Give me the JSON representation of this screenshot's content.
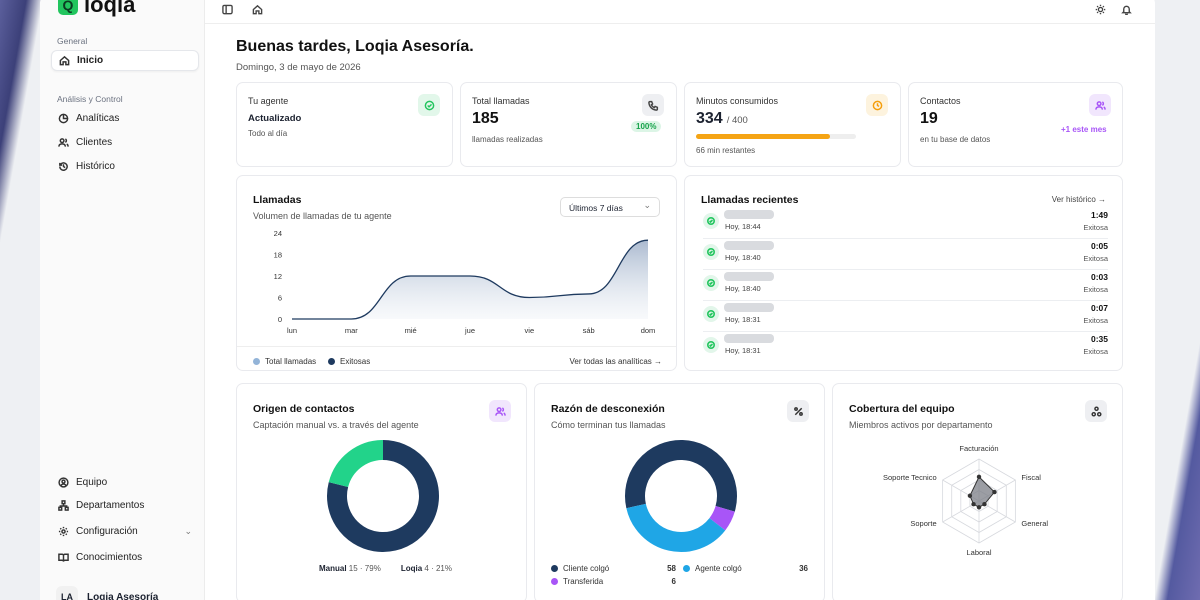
{
  "app": {
    "logo_text": "loqia"
  },
  "sidebar": {
    "section_general": "General",
    "section_analisis": "Análisis y Control",
    "items": [
      {
        "label": "Inicio",
        "icon": "home-icon"
      },
      {
        "label": "Analíticas",
        "icon": "pie-icon"
      },
      {
        "label": "Clientes",
        "icon": "users-icon"
      },
      {
        "label": "Histórico",
        "icon": "history-icon"
      }
    ],
    "bottom_items": [
      {
        "label": "Equipo",
        "icon": "user-circle-icon"
      },
      {
        "label": "Departamentos",
        "icon": "network-icon"
      },
      {
        "label": "Configuración",
        "icon": "gear-icon"
      },
      {
        "label": "Conocimientos",
        "icon": "book-icon"
      }
    ],
    "user": {
      "initials": "LA",
      "name": "Loqia Asesoría"
    }
  },
  "header": {
    "greeting": "Buenas tardes, Loqia Asesoría.",
    "date": "Domingo, 3 de mayo de 2026"
  },
  "stats": {
    "agent": {
      "label": "Tu agente",
      "value": "Actualizado",
      "sub": "Todo al día"
    },
    "calls": {
      "label": "Total llamadas",
      "value": "185",
      "sub": "llamadas realizadas",
      "badge": "100%"
    },
    "minutes": {
      "label": "Minutos consumidos",
      "value": "334",
      "total": "/ 400",
      "sub": "66 min restantes",
      "progress": 0.835
    },
    "contacts": {
      "label": "Contactos",
      "value": "19",
      "sub": "en tu base de datos",
      "badge": "+1 este mes"
    }
  },
  "calls_chart": {
    "title": "Llamadas",
    "subtitle": "Volumen de llamadas de tu agente",
    "range_select": "Últimos 7 días",
    "legend": [
      "Total llamadas",
      "Exitosas"
    ],
    "link": "Ver todas las analíticas →"
  },
  "chart_data": {
    "type": "area",
    "categories": [
      "lun",
      "mar",
      "mié",
      "jue",
      "vie",
      "sáb",
      "dom"
    ],
    "yticks": [
      "24",
      "18",
      "12",
      "6",
      "0"
    ],
    "ylim": [
      0,
      24
    ],
    "series": [
      {
        "name": "Total llamadas",
        "values": [
          0,
          0,
          12,
          12,
          6,
          7,
          22
        ]
      },
      {
        "name": "Exitosas",
        "values": [
          0,
          0,
          12,
          12,
          6,
          7,
          22
        ]
      }
    ]
  },
  "recent": {
    "title": "Llamadas recientes",
    "link": "Ver histórico →",
    "rows": [
      {
        "time": "Hoy, 18:44",
        "duration": "1:49",
        "status": "Exitosa"
      },
      {
        "time": "Hoy, 18:40",
        "duration": "0:05",
        "status": "Exitosa"
      },
      {
        "time": "Hoy, 18:40",
        "duration": "0:03",
        "status": "Exitosa"
      },
      {
        "time": "Hoy, 18:31",
        "duration": "0:07",
        "status": "Exitosa"
      },
      {
        "time": "Hoy, 18:31",
        "duration": "0:35",
        "status": "Exitosa"
      }
    ]
  },
  "origin": {
    "title": "Origen de contactos",
    "subtitle": "Captación manual vs. a través del agente",
    "legend": [
      {
        "name": "Manual",
        "value": "15 · 79%",
        "color": "#1e3a5f",
        "fraction": 0.79
      },
      {
        "name": "Loqia",
        "value": "4 · 21%",
        "color": "#22d38a",
        "fraction": 0.21
      }
    ]
  },
  "disconnect": {
    "title": "Razón de desconexión",
    "subtitle": "Cómo terminan tus llamadas",
    "legend": [
      {
        "name": "Cliente colgó",
        "value": "58",
        "color": "#1e3a5f"
      },
      {
        "name": "Agente colgó",
        "value": "36",
        "color": "#1fa6e6"
      },
      {
        "name": "Transferida",
        "value": "6",
        "color": "#a855f7"
      }
    ]
  },
  "coverage": {
    "title": "Cobertura del equipo",
    "subtitle": "Miembros activos por departamento",
    "axes": [
      "Facturación",
      "Fiscal",
      "General",
      "Laboral",
      "Soporte",
      "Soporte Tecnico"
    ]
  }
}
